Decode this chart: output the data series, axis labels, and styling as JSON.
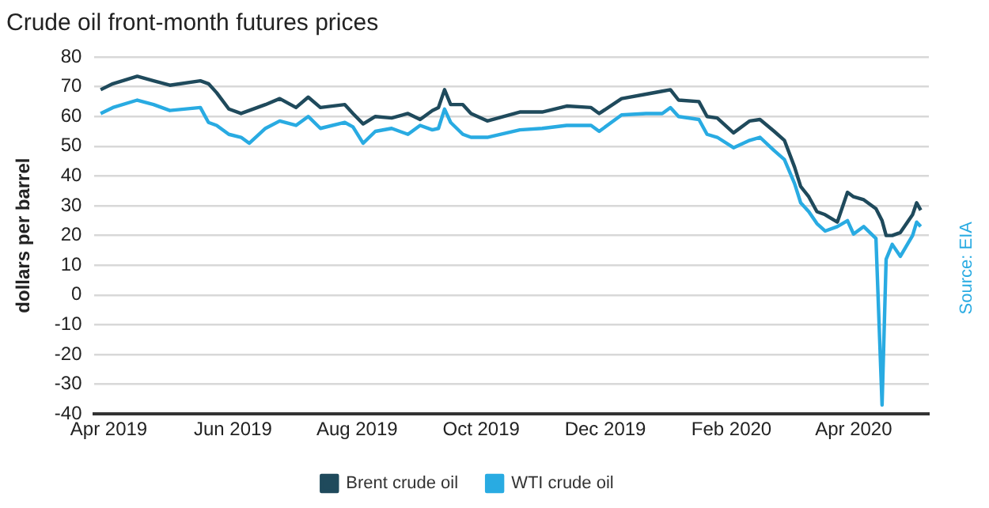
{
  "chart_data": {
    "type": "line",
    "title": "Crude oil front-month futures prices",
    "ylabel": "dollars per barrel",
    "annotations": [
      "Source: EIA"
    ],
    "x": [
      "2019-03-28",
      "2019-04-03",
      "2019-04-15",
      "2019-04-23",
      "2019-05-01",
      "2019-05-16",
      "2019-05-20",
      "2019-05-24",
      "2019-05-30",
      "2019-06-05",
      "2019-06-09",
      "2019-06-17",
      "2019-06-24",
      "2019-07-02",
      "2019-07-08",
      "2019-07-14",
      "2019-07-26",
      "2019-07-30",
      "2019-08-04",
      "2019-08-10",
      "2019-08-18",
      "2019-08-26",
      "2019-09-01",
      "2019-09-07",
      "2019-09-10",
      "2019-09-13",
      "2019-09-16",
      "2019-09-22",
      "2019-09-26",
      "2019-10-04",
      "2019-10-20",
      "2019-10-31",
      "2019-11-12",
      "2019-11-24",
      "2019-11-28",
      "2019-12-09",
      "2019-12-21",
      "2019-12-29",
      "2020-01-02",
      "2020-01-06",
      "2020-01-16",
      "2020-01-20",
      "2020-01-25",
      "2020-02-02",
      "2020-02-10",
      "2020-02-15",
      "2020-02-22",
      "2020-02-27",
      "2020-03-03",
      "2020-03-06",
      "2020-03-10",
      "2020-03-14",
      "2020-03-18",
      "2020-03-24",
      "2020-03-29",
      "2020-04-01",
      "2020-04-06",
      "2020-04-12",
      "2020-04-15",
      "2020-04-17",
      "2020-04-20",
      "2020-04-24",
      "2020-04-30",
      "2020-05-02",
      "2020-05-04"
    ],
    "series": [
      {
        "name": "Brent crude oil",
        "color": "#1f4a5c",
        "values": [
          69,
          71,
          73.5,
          72,
          70.5,
          72,
          71,
          68,
          62.5,
          61,
          62,
          64,
          66,
          63,
          66.5,
          63,
          64,
          61,
          57.5,
          60,
          59.5,
          61,
          59,
          62,
          63,
          69,
          64,
          64,
          61,
          58.5,
          61.5,
          61.5,
          63.5,
          63,
          61,
          66,
          67.5,
          68.5,
          69,
          65.5,
          65,
          60,
          59.5,
          54.5,
          58.5,
          59,
          55,
          52,
          43,
          36.5,
          33,
          28,
          27,
          24.5,
          34.5,
          33,
          32,
          29,
          25,
          20,
          20,
          21,
          27,
          31,
          28.5
        ]
      },
      {
        "name": "WTI crude oil",
        "color": "#29abe2",
        "values": [
          61,
          63,
          65.5,
          64,
          62,
          63,
          58,
          57,
          54,
          53,
          51,
          56,
          58.5,
          57,
          60,
          56,
          58,
          56.5,
          51,
          55,
          56,
          54,
          57,
          55.5,
          56,
          62.5,
          58,
          54,
          53,
          53,
          55.5,
          56,
          57,
          57,
          55,
          60.5,
          61,
          61,
          63,
          60,
          59,
          54,
          53,
          49.5,
          52,
          53,
          48.5,
          45.5,
          37.5,
          31,
          28,
          24,
          21.5,
          23,
          25,
          20.5,
          23,
          19,
          -37,
          12,
          17,
          13,
          20,
          24.5,
          23
        ]
      }
    ],
    "xlim": [
      "2019-03-25",
      "2020-05-08"
    ],
    "xticks": [
      {
        "value": "2019-04-01",
        "label": "Apr 2019"
      },
      {
        "value": "2019-06-01",
        "label": "Jun 2019"
      },
      {
        "value": "2019-08-01",
        "label": "Aug 2019"
      },
      {
        "value": "2019-10-01",
        "label": "Oct 2019"
      },
      {
        "value": "2019-12-01",
        "label": "Dec 2019"
      },
      {
        "value": "2020-02-01",
        "label": "Feb 2020"
      },
      {
        "value": "2020-04-01",
        "label": "Apr 2020"
      }
    ],
    "ylim": [
      -40,
      80
    ],
    "yticks": [
      -40,
      -30,
      -20,
      -10,
      0,
      10,
      20,
      30,
      40,
      50,
      60,
      70,
      80
    ],
    "grid": "y",
    "legend": "bottom",
    "marker": "none",
    "line_style": "solid"
  }
}
